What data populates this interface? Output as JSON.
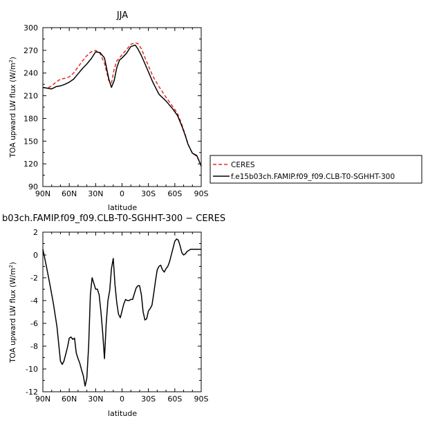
{
  "chart_data": [
    {
      "type": "line",
      "title": "JJA",
      "xlabel": "latitude",
      "ylabel": "TOA upward LW flux (W/m²)",
      "xlim": [
        90,
        -90
      ],
      "ylim": [
        90,
        300
      ],
      "x_ticks": [
        {
          "value": 90,
          "label": "90N"
        },
        {
          "value": 60,
          "label": "60N"
        },
        {
          "value": 30,
          "label": "30N"
        },
        {
          "value": 0,
          "label": "0"
        },
        {
          "value": -30,
          "label": "30S"
        },
        {
          "value": -60,
          "label": "60S"
        },
        {
          "value": -90,
          "label": "90S"
        }
      ],
      "y_ticks": [
        90,
        120,
        150,
        180,
        210,
        240,
        270,
        300
      ],
      "legend_position": "right",
      "series": [
        {
          "name": "CERES",
          "color": "#e8261f",
          "dash": "dashed",
          "x": [
            90,
            85,
            80,
            75,
            70,
            65,
            60,
            55,
            50,
            45,
            40,
            35,
            30,
            25,
            20,
            15,
            12,
            9,
            6,
            3,
            0,
            -5,
            -10,
            -15,
            -18,
            -22,
            -28,
            -35,
            -42,
            -50,
            -58,
            -63,
            -68,
            -72,
            -75,
            -80,
            -85,
            -90
          ],
          "y": [
            221,
            220,
            223,
            228,
            232,
            233,
            235,
            240,
            248,
            256,
            263,
            268,
            270,
            266,
            253,
            230,
            227,
            245,
            256,
            260,
            264,
            271,
            278,
            280,
            279,
            272,
            255,
            236,
            222,
            208,
            195,
            187,
            172,
            158,
            146,
            134,
            130,
            119
          ]
        },
        {
          "name": "f.e15b03ch.FAMIP.f09_f09.CLB-T0-SGHHT-300",
          "color": "#000000",
          "dash": "solid",
          "x": [
            90,
            85,
            80,
            75,
            70,
            65,
            60,
            55,
            50,
            45,
            40,
            35,
            30,
            25,
            20,
            15,
            12,
            9,
            6,
            3,
            0,
            -5,
            -10,
            -15,
            -18,
            -22,
            -28,
            -35,
            -42,
            -50,
            -58,
            -63,
            -68,
            -72,
            -75,
            -80,
            -85,
            -90
          ],
          "y": [
            221,
            220,
            219,
            222,
            223,
            225,
            228,
            232,
            239,
            246,
            252,
            259,
            268,
            267,
            260,
            232,
            221,
            230,
            247,
            257,
            260,
            266,
            275,
            277,
            272,
            263,
            247,
            228,
            212,
            203,
            192,
            184,
            170,
            157,
            146,
            134,
            131,
            117
          ]
        }
      ]
    },
    {
      "type": "line",
      "title": "b03ch.FAMIP.f09_f09.CLB-T0-SGHHT-300  −  CERES",
      "xlabel": "latitude",
      "ylabel": "TOA upward LW flux (W/m²)",
      "xlim": [
        90,
        -90
      ],
      "ylim": [
        -12,
        2
      ],
      "x_ticks": [
        {
          "value": 90,
          "label": "90N"
        },
        {
          "value": 60,
          "label": "60N"
        },
        {
          "value": 30,
          "label": "30N"
        },
        {
          "value": 0,
          "label": "0"
        },
        {
          "value": -30,
          "label": "30S"
        },
        {
          "value": -60,
          "label": "60S"
        },
        {
          "value": -90,
          "label": "90S"
        }
      ],
      "y_ticks": [
        -12,
        -10,
        -8,
        -6,
        -4,
        -2,
        0,
        2
      ],
      "series": [
        {
          "color": "#000000",
          "x": [
            90,
            86,
            82,
            78,
            74,
            70,
            68,
            66,
            64,
            62,
            60,
            58,
            56,
            54,
            52,
            50,
            48,
            46,
            44,
            42,
            40,
            38,
            36,
            34,
            32,
            30,
            28,
            26,
            24,
            22,
            20,
            18,
            16,
            14,
            12,
            10,
            8,
            6,
            4,
            2,
            0,
            -2,
            -4,
            -6,
            -8,
            -10,
            -12,
            -14,
            -16,
            -18,
            -20,
            -22,
            -24,
            -26,
            -28,
            -30,
            -32,
            -34,
            -36,
            -38,
            -40,
            -42,
            -44,
            -46,
            -48,
            -50,
            -52,
            -54,
            -56,
            -58,
            -60,
            -62,
            -64,
            -66,
            -68,
            -70,
            -72,
            -74,
            -76,
            -78,
            -80,
            -82,
            -84,
            -86,
            -88,
            -90
          ],
          "y": [
            0.5,
            -1,
            -2.6,
            -4.3,
            -6.3,
            -9.3,
            -9.6,
            -9.3,
            -8.7,
            -8.1,
            -7.3,
            -7.2,
            -7.4,
            -7.3,
            -8.6,
            -9.1,
            -9.5,
            -10.1,
            -10.6,
            -11.5,
            -10.8,
            -8,
            -3.5,
            -2,
            -2.5,
            -3,
            -3,
            -3.5,
            -5,
            -6.8,
            -9.1,
            -6,
            -4,
            -3.1,
            -1.2,
            -0.3,
            -2.6,
            -4.2,
            -5.2,
            -5.5,
            -4.9,
            -4.3,
            -3.9,
            -4,
            -4,
            -3.9,
            -3.9,
            -3.4,
            -2.9,
            -2.7,
            -2.7,
            -3.5,
            -5,
            -5.7,
            -5.6,
            -4.9,
            -4.7,
            -4.4,
            -3.4,
            -2.3,
            -1.3,
            -1,
            -0.9,
            -1.3,
            -1.5,
            -1.2,
            -1,
            -0.6,
            0,
            0.6,
            1.2,
            1.4,
            1.3,
            0.8,
            0.2,
            0,
            0.1,
            0.3,
            0.4,
            0.5,
            0.5,
            0.5,
            0.5,
            0.5,
            0.5,
            0.5
          ]
        }
      ]
    }
  ]
}
